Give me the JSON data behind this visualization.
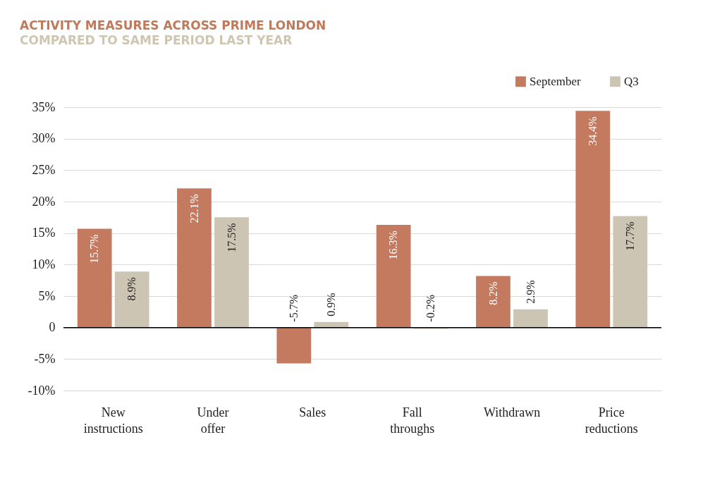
{
  "chart_data": {
    "type": "bar",
    "title": "ACTIVITY MEASURES ACROSS PRIME LONDON",
    "subtitle": "COMPARED TO SAME PERIOD LAST YEAR",
    "categories": [
      "New instructions",
      "Under offer",
      "Sales",
      "Fall throughs",
      "Withdrawn",
      "Price reductions"
    ],
    "series": [
      {
        "name": "September",
        "color": "#c47a5e",
        "values": [
          15.7,
          22.1,
          -5.7,
          16.3,
          8.2,
          34.4
        ],
        "value_labels": [
          "15.7%",
          "22.1%",
          "-5.7%",
          "16.3%",
          "8.2%",
          "34.4%"
        ]
      },
      {
        "name": "Q3",
        "color": "#cdc5b3",
        "values": [
          8.9,
          17.5,
          0.9,
          -0.2,
          2.9,
          17.7
        ],
        "value_labels": [
          "8.9%",
          "17.5%",
          "0.9%",
          "-0.2%",
          "2.9%",
          "17.7%"
        ]
      }
    ],
    "ylim": [
      -10,
      35
    ],
    "yticks": [
      {
        "value": -10,
        "label": "-10%"
      },
      {
        "value": -5,
        "label": "-5%"
      },
      0,
      {
        "value": 5,
        "label": "5%"
      },
      {
        "value": 10,
        "label": "10%"
      },
      {
        "value": 15,
        "label": "15%"
      },
      {
        "value": 20,
        "label": "20%"
      },
      {
        "value": 25,
        "label": "25%"
      },
      {
        "value": 30,
        "label": "30%"
      },
      {
        "value": 35,
        "label": "35%"
      }
    ],
    "ref_lines": [
      {
        "axis": "y",
        "value": 0,
        "color": "#000000"
      }
    ],
    "grid": "y",
    "legend": "top right"
  }
}
